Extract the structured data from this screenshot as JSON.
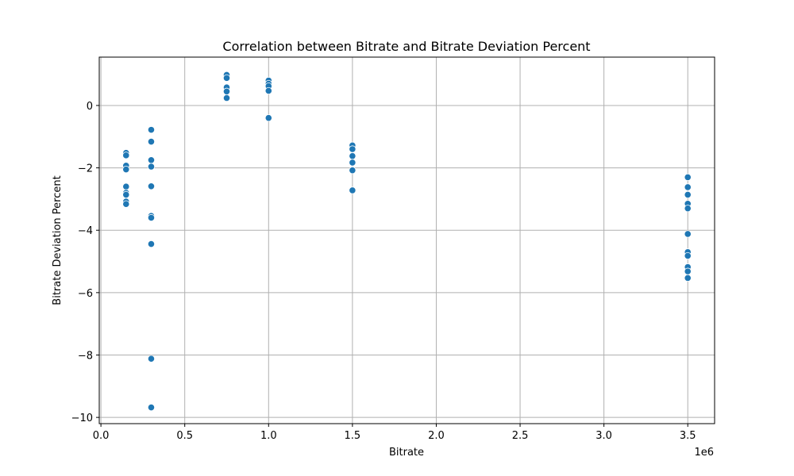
{
  "chart_data": {
    "type": "scatter",
    "title": "Correlation between Bitrate and Bitrate Deviation Percent",
    "xlabel": "Bitrate",
    "ylabel": "Bitrate Deviation Percent",
    "x_offset_label": "1e6",
    "xlim": [
      -10000,
      3660000
    ],
    "ylim": [
      -10.2,
      1.55
    ],
    "xticks": [
      0,
      500000,
      1000000,
      1500000,
      2000000,
      2500000,
      3000000,
      3500000
    ],
    "xtick_labels": [
      "0.0",
      "0.5",
      "1.0",
      "1.5",
      "2.0",
      "2.5",
      "3.0",
      "3.5"
    ],
    "yticks": [
      -10,
      -8,
      -6,
      -4,
      -2,
      0
    ],
    "ytick_labels": [
      "−10",
      "−8",
      "−6",
      "−4",
      "−2",
      "0"
    ],
    "grid": true,
    "marker_color": "#1f77b4",
    "points": [
      {
        "x": 150000,
        "y": -1.52
      },
      {
        "x": 150000,
        "y": -1.6
      },
      {
        "x": 150000,
        "y": -1.93
      },
      {
        "x": 150000,
        "y": -2.05
      },
      {
        "x": 150000,
        "y": -2.6
      },
      {
        "x": 150000,
        "y": -2.8
      },
      {
        "x": 150000,
        "y": -2.86
      },
      {
        "x": 150000,
        "y": -3.08
      },
      {
        "x": 150000,
        "y": -3.16
      },
      {
        "x": 300000,
        "y": -0.78
      },
      {
        "x": 300000,
        "y": -1.16
      },
      {
        "x": 300000,
        "y": -1.75
      },
      {
        "x": 300000,
        "y": -1.96
      },
      {
        "x": 300000,
        "y": -2.59
      },
      {
        "x": 300000,
        "y": -3.54
      },
      {
        "x": 300000,
        "y": -3.6
      },
      {
        "x": 300000,
        "y": -4.44
      },
      {
        "x": 300000,
        "y": -8.12
      },
      {
        "x": 300000,
        "y": -9.68
      },
      {
        "x": 750000,
        "y": 0.98
      },
      {
        "x": 750000,
        "y": 0.88
      },
      {
        "x": 750000,
        "y": 0.58
      },
      {
        "x": 750000,
        "y": 0.45
      },
      {
        "x": 750000,
        "y": 0.24
      },
      {
        "x": 1000000,
        "y": 0.8
      },
      {
        "x": 1000000,
        "y": 0.7
      },
      {
        "x": 1000000,
        "y": 0.62
      },
      {
        "x": 1000000,
        "y": 0.47
      },
      {
        "x": 1000000,
        "y": -0.4
      },
      {
        "x": 1500000,
        "y": -1.28
      },
      {
        "x": 1500000,
        "y": -1.4
      },
      {
        "x": 1500000,
        "y": -1.62
      },
      {
        "x": 1500000,
        "y": -1.83
      },
      {
        "x": 1500000,
        "y": -2.08
      },
      {
        "x": 1500000,
        "y": -2.72
      },
      {
        "x": 3500000,
        "y": -2.3
      },
      {
        "x": 3500000,
        "y": -2.62
      },
      {
        "x": 3500000,
        "y": -2.86
      },
      {
        "x": 3500000,
        "y": -3.15
      },
      {
        "x": 3500000,
        "y": -3.3
      },
      {
        "x": 3500000,
        "y": -4.12
      },
      {
        "x": 3500000,
        "y": -4.7
      },
      {
        "x": 3500000,
        "y": -4.82
      },
      {
        "x": 3500000,
        "y": -5.18
      },
      {
        "x": 3500000,
        "y": -5.32
      },
      {
        "x": 3500000,
        "y": -5.53
      }
    ]
  }
}
